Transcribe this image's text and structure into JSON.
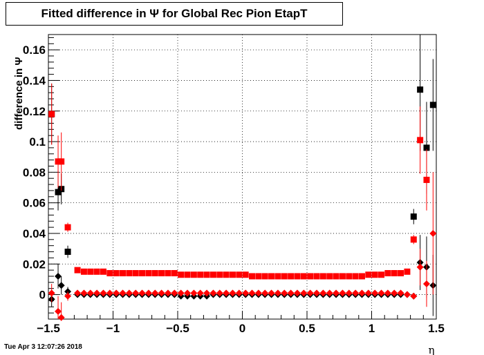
{
  "chart_data": {
    "type": "scatter",
    "title": "Fitted difference in  Ψ  for Global Rec Pion EtapT",
    "xlabel": "η",
    "ylabel": "difference in  Ψ",
    "xlim": [
      -1.5,
      1.5
    ],
    "ylim": [
      -0.016,
      0.17
    ],
    "xticks": [
      "−1.5",
      "−1",
      "−0.5",
      "0",
      "0.5",
      "1",
      "1.5"
    ],
    "xtick_values": [
      -1.5,
      -1,
      -0.5,
      0,
      0.5,
      1,
      1.5
    ],
    "yticks": [
      "0",
      "0.02",
      "0.04",
      "0.06",
      "0.08",
      "0.1",
      "0.12",
      "0.14",
      "0.16"
    ],
    "ytick_values": [
      0,
      0.02,
      0.04,
      0.06,
      0.08,
      0.1,
      0.12,
      0.14,
      0.16
    ],
    "grid": true,
    "series": [
      {
        "marker": "square",
        "color": "#000000",
        "points": [
          {
            "x": -1.475,
            "y": 0.118,
            "err": 0.02
          },
          {
            "x": -1.425,
            "y": 0.067,
            "err": 0.012
          },
          {
            "x": -1.4,
            "y": 0.069,
            "err": 0.01
          },
          {
            "x": -1.35,
            "y": 0.028,
            "err": 0.004
          },
          {
            "x": 1.325,
            "y": 0.051,
            "err": 0.005
          },
          {
            "x": 1.375,
            "y": 0.134,
            "err": 0.04
          },
          {
            "x": 1.425,
            "y": 0.096,
            "err": 0.03
          },
          {
            "x": 1.475,
            "y": 0.124,
            "err": 0.03
          }
        ]
      },
      {
        "marker": "square",
        "color": "#ff0000",
        "points": [
          {
            "x": -1.475,
            "y": 0.118,
            "err": 0.02
          },
          {
            "x": -1.425,
            "y": 0.087,
            "err": 0.017
          },
          {
            "x": -1.4,
            "y": 0.087,
            "err": 0.019
          },
          {
            "x": -1.35,
            "y": 0.044,
            "err": 0.003
          },
          {
            "x": -1.275,
            "y": 0.016,
            "err": 0.001
          },
          {
            "x": -1.225,
            "y": 0.015,
            "err": 0.001
          },
          {
            "x": -1.175,
            "y": 0.015,
            "err": 0.001
          },
          {
            "x": -1.125,
            "y": 0.015,
            "err": 0.001
          },
          {
            "x": -1.075,
            "y": 0.015,
            "err": 0.001
          },
          {
            "x": -1.025,
            "y": 0.014,
            "err": 0.001
          },
          {
            "x": -0.975,
            "y": 0.014,
            "err": 0.001
          },
          {
            "x": -0.925,
            "y": 0.014,
            "err": 0.001
          },
          {
            "x": -0.875,
            "y": 0.014,
            "err": 0.001
          },
          {
            "x": -0.825,
            "y": 0.014,
            "err": 0.001
          },
          {
            "x": -0.775,
            "y": 0.014,
            "err": 0.001
          },
          {
            "x": -0.725,
            "y": 0.014,
            "err": 0.001
          },
          {
            "x": -0.675,
            "y": 0.014,
            "err": 0.001
          },
          {
            "x": -0.625,
            "y": 0.014,
            "err": 0.001
          },
          {
            "x": -0.575,
            "y": 0.014,
            "err": 0.001
          },
          {
            "x": -0.525,
            "y": 0.014,
            "err": 0.001
          },
          {
            "x": -0.475,
            "y": 0.013,
            "err": 0.001
          },
          {
            "x": -0.425,
            "y": 0.013,
            "err": 0.001
          },
          {
            "x": -0.375,
            "y": 0.013,
            "err": 0.001
          },
          {
            "x": -0.325,
            "y": 0.013,
            "err": 0.001
          },
          {
            "x": -0.275,
            "y": 0.013,
            "err": 0.001
          },
          {
            "x": -0.225,
            "y": 0.013,
            "err": 0.001
          },
          {
            "x": -0.175,
            "y": 0.013,
            "err": 0.001
          },
          {
            "x": -0.125,
            "y": 0.013,
            "err": 0.001
          },
          {
            "x": -0.075,
            "y": 0.013,
            "err": 0.001
          },
          {
            "x": -0.025,
            "y": 0.013,
            "err": 0.001
          },
          {
            "x": 0.025,
            "y": 0.013,
            "err": 0.001
          },
          {
            "x": 0.075,
            "y": 0.012,
            "err": 0.001
          },
          {
            "x": 0.125,
            "y": 0.012,
            "err": 0.001
          },
          {
            "x": 0.175,
            "y": 0.012,
            "err": 0.001
          },
          {
            "x": 0.225,
            "y": 0.012,
            "err": 0.001
          },
          {
            "x": 0.275,
            "y": 0.012,
            "err": 0.001
          },
          {
            "x": 0.325,
            "y": 0.012,
            "err": 0.001
          },
          {
            "x": 0.375,
            "y": 0.012,
            "err": 0.001
          },
          {
            "x": 0.425,
            "y": 0.012,
            "err": 0.001
          },
          {
            "x": 0.475,
            "y": 0.012,
            "err": 0.001
          },
          {
            "x": 0.525,
            "y": 0.012,
            "err": 0.001
          },
          {
            "x": 0.575,
            "y": 0.012,
            "err": 0.001
          },
          {
            "x": 0.625,
            "y": 0.012,
            "err": 0.001
          },
          {
            "x": 0.675,
            "y": 0.012,
            "err": 0.001
          },
          {
            "x": 0.725,
            "y": 0.012,
            "err": 0.001
          },
          {
            "x": 0.775,
            "y": 0.012,
            "err": 0.001
          },
          {
            "x": 0.825,
            "y": 0.012,
            "err": 0.001
          },
          {
            "x": 0.875,
            "y": 0.012,
            "err": 0.001
          },
          {
            "x": 0.925,
            "y": 0.012,
            "err": 0.001
          },
          {
            "x": 0.975,
            "y": 0.013,
            "err": 0.001
          },
          {
            "x": 1.025,
            "y": 0.013,
            "err": 0.001
          },
          {
            "x": 1.075,
            "y": 0.013,
            "err": 0.001
          },
          {
            "x": 1.125,
            "y": 0.014,
            "err": 0.001
          },
          {
            "x": 1.175,
            "y": 0.014,
            "err": 0.001
          },
          {
            "x": 1.225,
            "y": 0.014,
            "err": 0.001
          },
          {
            "x": 1.275,
            "y": 0.015,
            "err": 0.001
          },
          {
            "x": 1.325,
            "y": 0.036,
            "err": 0.003
          },
          {
            "x": 1.375,
            "y": 0.101,
            "err": 0.022
          },
          {
            "x": 1.425,
            "y": 0.075,
            "err": 0.02
          }
        ]
      },
      {
        "marker": "diamond",
        "color": "#000000",
        "points": [
          {
            "x": -1.475,
            "y": -0.003,
            "err": 0.005
          },
          {
            "x": -1.425,
            "y": 0.012,
            "err": 0.008
          },
          {
            "x": -1.4,
            "y": 0.006,
            "err": 0.006
          },
          {
            "x": -1.35,
            "y": 0.002,
            "err": 0.003
          },
          {
            "x": -1.275,
            "y": 0.0,
            "err": 0.001
          },
          {
            "x": -1.225,
            "y": 0.0,
            "err": 0.001
          },
          {
            "x": -1.175,
            "y": 0.0,
            "err": 0.001
          },
          {
            "x": -1.125,
            "y": 0.0,
            "err": 0.001
          },
          {
            "x": -1.075,
            "y": 0.0,
            "err": 0.001
          },
          {
            "x": -1.025,
            "y": 0.0,
            "err": 0.001
          },
          {
            "x": -0.975,
            "y": 0.0,
            "err": 0.001
          },
          {
            "x": -0.925,
            "y": 0.0,
            "err": 0.001
          },
          {
            "x": -0.875,
            "y": 0.0,
            "err": 0.001
          },
          {
            "x": -0.825,
            "y": 0.0,
            "err": 0.001
          },
          {
            "x": -0.775,
            "y": 0.0,
            "err": 0.001
          },
          {
            "x": -0.725,
            "y": 0.0,
            "err": 0.001
          },
          {
            "x": -0.675,
            "y": 0.0,
            "err": 0.001
          },
          {
            "x": -0.625,
            "y": 0.0,
            "err": 0.001
          },
          {
            "x": -0.575,
            "y": 0.0,
            "err": 0.001
          },
          {
            "x": -0.525,
            "y": 0.0,
            "err": 0.001
          },
          {
            "x": -0.475,
            "y": -0.001,
            "err": 0.001
          },
          {
            "x": -0.425,
            "y": -0.001,
            "err": 0.001
          },
          {
            "x": -0.375,
            "y": -0.001,
            "err": 0.001
          },
          {
            "x": -0.325,
            "y": -0.001,
            "err": 0.001
          },
          {
            "x": -0.275,
            "y": -0.001,
            "err": 0.001
          },
          {
            "x": -0.225,
            "y": 0.0,
            "err": 0.001
          },
          {
            "x": -0.175,
            "y": 0.0,
            "err": 0.001
          },
          {
            "x": -0.125,
            "y": 0.0,
            "err": 0.001
          },
          {
            "x": -0.075,
            "y": 0.0,
            "err": 0.001
          },
          {
            "x": -0.025,
            "y": 0.0,
            "err": 0.001
          },
          {
            "x": 0.025,
            "y": 0.0,
            "err": 0.001
          },
          {
            "x": 0.075,
            "y": 0.0,
            "err": 0.001
          },
          {
            "x": 0.125,
            "y": 0.0,
            "err": 0.001
          },
          {
            "x": 0.175,
            "y": 0.0,
            "err": 0.001
          },
          {
            "x": 0.225,
            "y": 0.0,
            "err": 0.001
          },
          {
            "x": 0.275,
            "y": 0.0,
            "err": 0.001
          },
          {
            "x": 0.325,
            "y": 0.0,
            "err": 0.001
          },
          {
            "x": 0.375,
            "y": 0.0,
            "err": 0.001
          },
          {
            "x": 0.425,
            "y": 0.0,
            "err": 0.001
          },
          {
            "x": 0.475,
            "y": 0.0,
            "err": 0.001
          },
          {
            "x": 0.525,
            "y": 0.0,
            "err": 0.001
          },
          {
            "x": 0.575,
            "y": 0.0,
            "err": 0.001
          },
          {
            "x": 0.625,
            "y": 0.0,
            "err": 0.001
          },
          {
            "x": 0.675,
            "y": 0.0,
            "err": 0.001
          },
          {
            "x": 0.725,
            "y": 0.0,
            "err": 0.001
          },
          {
            "x": 0.775,
            "y": 0.0,
            "err": 0.001
          },
          {
            "x": 0.825,
            "y": 0.0,
            "err": 0.001
          },
          {
            "x": 0.875,
            "y": 0.0,
            "err": 0.001
          },
          {
            "x": 0.925,
            "y": 0.0,
            "err": 0.001
          },
          {
            "x": 0.975,
            "y": 0.0,
            "err": 0.001
          },
          {
            "x": 1.025,
            "y": 0.0,
            "err": 0.001
          },
          {
            "x": 1.075,
            "y": 0.0,
            "err": 0.001
          },
          {
            "x": 1.125,
            "y": 0.0,
            "err": 0.001
          },
          {
            "x": 1.175,
            "y": 0.0,
            "err": 0.001
          },
          {
            "x": 1.225,
            "y": 0.0,
            "err": 0.001
          },
          {
            "x": 1.275,
            "y": 0.0,
            "err": 0.001
          },
          {
            "x": 1.325,
            "y": -0.001,
            "err": 0.002
          },
          {
            "x": 1.375,
            "y": 0.021,
            "err": 0.018
          },
          {
            "x": 1.425,
            "y": 0.018,
            "err": 0.02
          },
          {
            "x": 1.475,
            "y": 0.006,
            "err": 0.02
          }
        ]
      },
      {
        "marker": "diamond",
        "color": "#ff0000",
        "points": [
          {
            "x": -1.475,
            "y": 0.001,
            "err": 0.006
          },
          {
            "x": -1.425,
            "y": -0.011,
            "err": 0.01
          },
          {
            "x": -1.4,
            "y": -0.015,
            "err": 0.01
          },
          {
            "x": -1.35,
            "y": -0.001,
            "err": 0.003
          },
          {
            "x": -1.275,
            "y": 0.001,
            "err": 0.001
          },
          {
            "x": -1.225,
            "y": 0.001,
            "err": 0.001
          },
          {
            "x": -1.175,
            "y": 0.001,
            "err": 0.001
          },
          {
            "x": -1.125,
            "y": 0.001,
            "err": 0.001
          },
          {
            "x": -1.075,
            "y": 0.001,
            "err": 0.001
          },
          {
            "x": -1.025,
            "y": 0.001,
            "err": 0.001
          },
          {
            "x": -0.975,
            "y": 0.001,
            "err": 0.001
          },
          {
            "x": -0.925,
            "y": 0.001,
            "err": 0.001
          },
          {
            "x": -0.875,
            "y": 0.001,
            "err": 0.001
          },
          {
            "x": -0.825,
            "y": 0.001,
            "err": 0.001
          },
          {
            "x": -0.775,
            "y": 0.001,
            "err": 0.001
          },
          {
            "x": -0.725,
            "y": 0.001,
            "err": 0.001
          },
          {
            "x": -0.675,
            "y": 0.001,
            "err": 0.001
          },
          {
            "x": -0.625,
            "y": 0.001,
            "err": 0.001
          },
          {
            "x": -0.575,
            "y": 0.001,
            "err": 0.001
          },
          {
            "x": -0.525,
            "y": 0.001,
            "err": 0.001
          },
          {
            "x": -0.475,
            "y": 0.001,
            "err": 0.001
          },
          {
            "x": -0.425,
            "y": 0.001,
            "err": 0.001
          },
          {
            "x": -0.375,
            "y": 0.001,
            "err": 0.001
          },
          {
            "x": -0.325,
            "y": 0.001,
            "err": 0.001
          },
          {
            "x": -0.275,
            "y": 0.001,
            "err": 0.001
          },
          {
            "x": -0.225,
            "y": 0.001,
            "err": 0.001
          },
          {
            "x": -0.175,
            "y": 0.001,
            "err": 0.001
          },
          {
            "x": -0.125,
            "y": 0.001,
            "err": 0.001
          },
          {
            "x": -0.075,
            "y": 0.001,
            "err": 0.001
          },
          {
            "x": -0.025,
            "y": 0.001,
            "err": 0.001
          },
          {
            "x": 0.025,
            "y": 0.001,
            "err": 0.001
          },
          {
            "x": 0.075,
            "y": 0.001,
            "err": 0.001
          },
          {
            "x": 0.125,
            "y": 0.001,
            "err": 0.001
          },
          {
            "x": 0.175,
            "y": 0.001,
            "err": 0.001
          },
          {
            "x": 0.225,
            "y": 0.001,
            "err": 0.001
          },
          {
            "x": 0.275,
            "y": 0.001,
            "err": 0.001
          },
          {
            "x": 0.325,
            "y": 0.001,
            "err": 0.001
          },
          {
            "x": 0.375,
            "y": 0.001,
            "err": 0.001
          },
          {
            "x": 0.425,
            "y": 0.001,
            "err": 0.001
          },
          {
            "x": 0.475,
            "y": 0.001,
            "err": 0.001
          },
          {
            "x": 0.525,
            "y": 0.001,
            "err": 0.001
          },
          {
            "x": 0.575,
            "y": 0.001,
            "err": 0.001
          },
          {
            "x": 0.625,
            "y": 0.001,
            "err": 0.001
          },
          {
            "x": 0.675,
            "y": 0.001,
            "err": 0.001
          },
          {
            "x": 0.725,
            "y": 0.001,
            "err": 0.001
          },
          {
            "x": 0.775,
            "y": 0.001,
            "err": 0.001
          },
          {
            "x": 0.825,
            "y": 0.001,
            "err": 0.001
          },
          {
            "x": 0.875,
            "y": 0.001,
            "err": 0.001
          },
          {
            "x": 0.925,
            "y": 0.001,
            "err": 0.001
          },
          {
            "x": 0.975,
            "y": 0.001,
            "err": 0.001
          },
          {
            "x": 1.025,
            "y": 0.001,
            "err": 0.001
          },
          {
            "x": 1.075,
            "y": 0.001,
            "err": 0.001
          },
          {
            "x": 1.125,
            "y": 0.001,
            "err": 0.001
          },
          {
            "x": 1.175,
            "y": 0.001,
            "err": 0.001
          },
          {
            "x": 1.225,
            "y": 0.001,
            "err": 0.001
          },
          {
            "x": 1.275,
            "y": 0.0,
            "err": 0.001
          },
          {
            "x": 1.325,
            "y": -0.001,
            "err": 0.002
          },
          {
            "x": 1.375,
            "y": 0.018,
            "err": 0.012
          },
          {
            "x": 1.425,
            "y": 0.007,
            "err": 0.015
          },
          {
            "x": 1.475,
            "y": 0.04,
            "err": 0.04
          }
        ]
      }
    ]
  },
  "footer": {
    "timestamp": "Tue Apr  3 12:07:26 2018"
  }
}
